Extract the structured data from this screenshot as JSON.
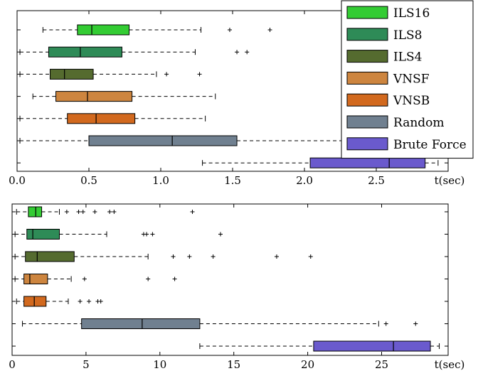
{
  "chart_data": [
    {
      "type": "boxplot",
      "orientation": "horizontal",
      "xlabel": "t(sec)",
      "xlim": [
        0,
        3.0
      ],
      "xticks": [
        0.0,
        0.5,
        1.0,
        1.5,
        2.0,
        2.5
      ],
      "xtick_labels": [
        "0.0",
        "0.5",
        "1.0",
        "1.5",
        "2.0",
        "2.5"
      ],
      "legend": {
        "placement": "top-right",
        "entries": [
          {
            "label": "ILS16",
            "color": "#33cc33"
          },
          {
            "label": "ILS8",
            "color": "#2e8b57"
          },
          {
            "label": "ILS4",
            "color": "#556b2f"
          },
          {
            "label": "VNSF",
            "color": "#cd853f"
          },
          {
            "label": "VNSB",
            "color": "#d2691e"
          },
          {
            "label": "Random",
            "color": "#708090"
          },
          {
            "label": "Brute Force",
            "color": "#6a5acd"
          }
        ]
      },
      "series": [
        {
          "name": "ILS16",
          "color": "#33cc33",
          "whisker_low": 0.18,
          "q1": 0.42,
          "median": 0.52,
          "q3": 0.78,
          "whisker_high": 1.28,
          "outliers": [
            1.48,
            1.76
          ]
        },
        {
          "name": "ILS8",
          "color": "#2e8b57",
          "whisker_low": 0.02,
          "q1": 0.22,
          "median": 0.44,
          "q3": 0.73,
          "whisker_high": 1.24,
          "outliers": [
            1.53,
            1.6
          ]
        },
        {
          "name": "ILS4",
          "color": "#556b2f",
          "whisker_low": 0.02,
          "q1": 0.23,
          "median": 0.33,
          "q3": 0.53,
          "whisker_high": 0.97,
          "outliers": [
            1.04,
            1.27
          ]
        },
        {
          "name": "VNSF",
          "color": "#cd853f",
          "whisker_low": 0.11,
          "q1": 0.27,
          "median": 0.49,
          "q3": 0.8,
          "whisker_high": 1.38,
          "outliers": []
        },
        {
          "name": "VNSB",
          "color": "#d2691e",
          "whisker_low": 0.02,
          "q1": 0.35,
          "median": 0.55,
          "q3": 0.82,
          "whisker_high": 1.31,
          "outliers": []
        },
        {
          "name": "Random",
          "color": "#708090",
          "whisker_low": 0.02,
          "q1": 0.5,
          "median": 1.08,
          "q3": 1.53,
          "whisker_high": 2.4,
          "outliers": []
        },
        {
          "name": "Brute Force",
          "color": "#6a5acd",
          "whisker_low": 1.29,
          "q1": 2.04,
          "median": 2.59,
          "q3": 2.84,
          "whisker_high": 2.93,
          "outliers": []
        }
      ]
    },
    {
      "type": "boxplot",
      "orientation": "horizontal",
      "xlabel": "t(sec)",
      "xlim": [
        0,
        29.5
      ],
      "xticks": [
        0,
        5,
        10,
        15,
        20,
        25
      ],
      "xtick_labels": [
        "0",
        "5",
        "10",
        "15",
        "20",
        "25"
      ],
      "series": [
        {
          "name": "ILS16",
          "color": "#33cc33",
          "whisker_low": 0.3,
          "q1": 1.1,
          "median": 1.6,
          "q3": 2.0,
          "whisker_high": 3.2,
          "outliers": [
            3.7,
            4.5,
            4.8,
            5.6,
            6.6,
            6.9,
            12.2
          ]
        },
        {
          "name": "ILS8",
          "color": "#2e8b57",
          "whisker_low": 0.2,
          "q1": 1.0,
          "median": 1.4,
          "q3": 3.2,
          "whisker_high": 6.4,
          "outliers": [
            8.9,
            9.1,
            9.5,
            14.1
          ]
        },
        {
          "name": "ILS4",
          "color": "#556b2f",
          "whisker_low": 0.2,
          "q1": 0.9,
          "median": 1.7,
          "q3": 4.2,
          "whisker_high": 9.2,
          "outliers": [
            10.9,
            12.0,
            13.6,
            17.9,
            20.2
          ]
        },
        {
          "name": "VNSF",
          "color": "#cd853f",
          "whisker_low": 0.2,
          "q1": 0.8,
          "median": 1.2,
          "q3": 2.4,
          "whisker_high": 4.0,
          "outliers": [
            4.9,
            9.2,
            11.0
          ]
        },
        {
          "name": "VNSB",
          "color": "#d2691e",
          "whisker_low": 0.3,
          "q1": 0.8,
          "median": 1.5,
          "q3": 2.3,
          "whisker_high": 3.8,
          "outliers": [
            4.6,
            5.2,
            5.8,
            6.0
          ]
        },
        {
          "name": "Random",
          "color": "#708090",
          "whisker_low": 0.7,
          "q1": 4.7,
          "median": 8.8,
          "q3": 12.7,
          "whisker_high": 24.8,
          "outliers": [
            25.3,
            27.3
          ]
        },
        {
          "name": "Brute Force",
          "color": "#6a5acd",
          "whisker_low": 12.7,
          "q1": 20.4,
          "median": 25.8,
          "q3": 28.3,
          "whisker_high": 28.9,
          "outliers": []
        }
      ]
    }
  ]
}
